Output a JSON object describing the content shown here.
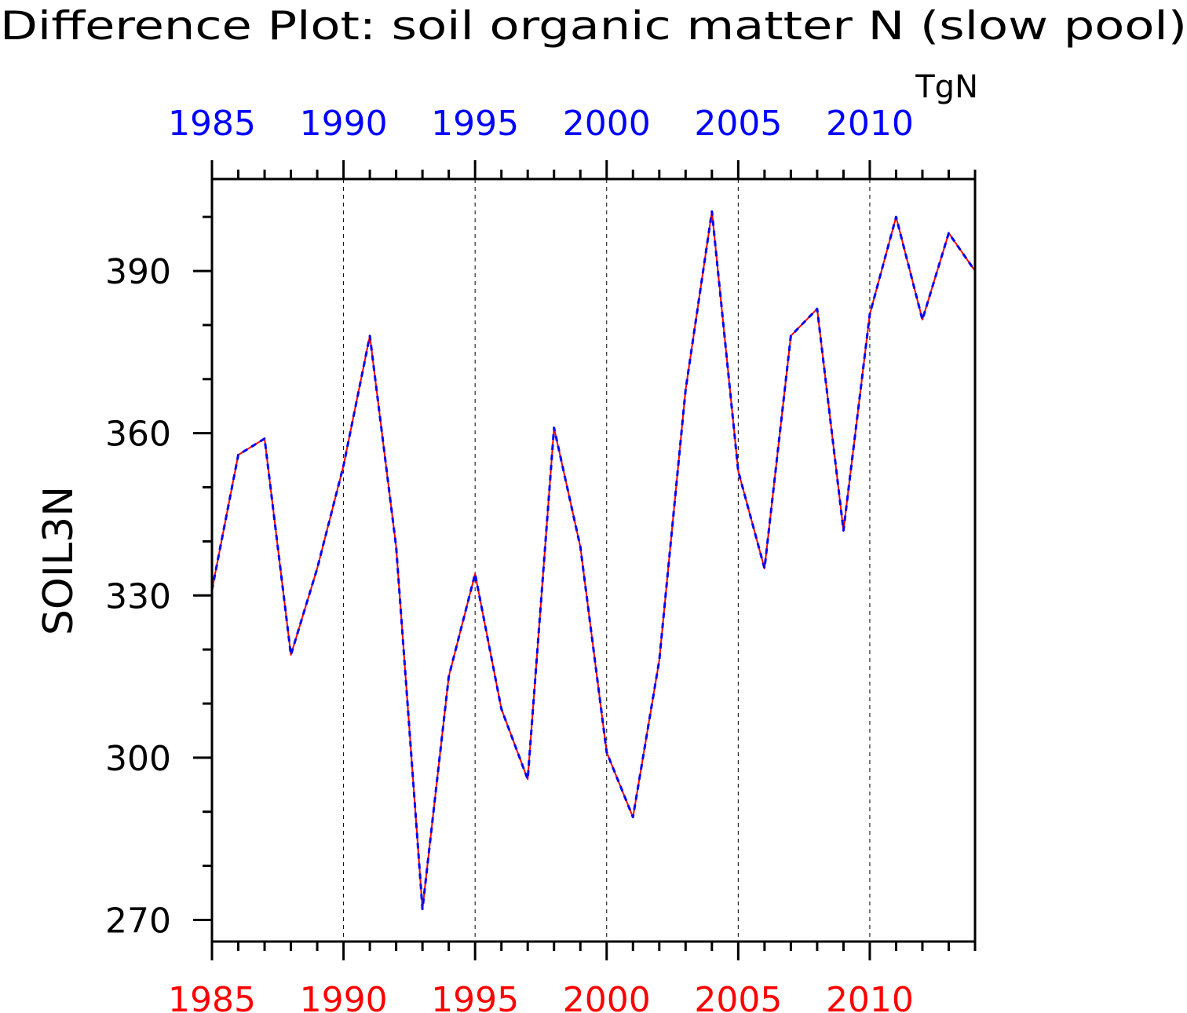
{
  "chart_data": {
    "type": "line",
    "title": "Difference Plot: soil organic matter N (slow pool)",
    "units": "TgN",
    "ylabel": "SOIL3N",
    "xlabel": "",
    "xlim": [
      1985,
      2014
    ],
    "ylim": [
      266,
      407
    ],
    "x_ticks": [
      1985,
      1990,
      1995,
      2000,
      2005,
      2010
    ],
    "x_tick_labels": [
      "1985",
      "1990",
      "1995",
      "2000",
      "2005",
      "2010"
    ],
    "y_ticks": [
      270,
      300,
      330,
      360,
      390
    ],
    "y_tick_labels": [
      "270",
      "300",
      "330",
      "360",
      "390"
    ],
    "vertical_grid": true,
    "grid_style": "dashed",
    "bottom_axis_color": "#ff0000",
    "top_axis_color": "#0000ff",
    "x": [
      1985,
      1986,
      1987,
      1988,
      1989,
      1990,
      1991,
      1992,
      1993,
      1994,
      1995,
      1996,
      1997,
      1998,
      1999,
      2000,
      2001,
      2002,
      2003,
      2004,
      2005,
      2006,
      2007,
      2008,
      2009,
      2010,
      2011,
      2012,
      2013,
      2014
    ],
    "series": [
      {
        "color": "#ff0000",
        "style": "solid",
        "values": [
          331,
          356,
          359,
          319,
          335,
          354,
          378,
          339,
          272,
          315,
          334,
          309,
          296,
          361,
          339,
          301,
          289,
          318,
          368,
          401,
          353,
          335,
          378,
          383,
          342,
          382,
          400,
          381,
          397,
          390
        ]
      },
      {
        "color": "#0000ff",
        "style": "dashed",
        "values": [
          331,
          356,
          359,
          319,
          335,
          354,
          378,
          339,
          272,
          315,
          334,
          309,
          296,
          361,
          339,
          301,
          289,
          318,
          368,
          401,
          353,
          335,
          378,
          383,
          342,
          382,
          400,
          381,
          397,
          390
        ]
      }
    ]
  }
}
